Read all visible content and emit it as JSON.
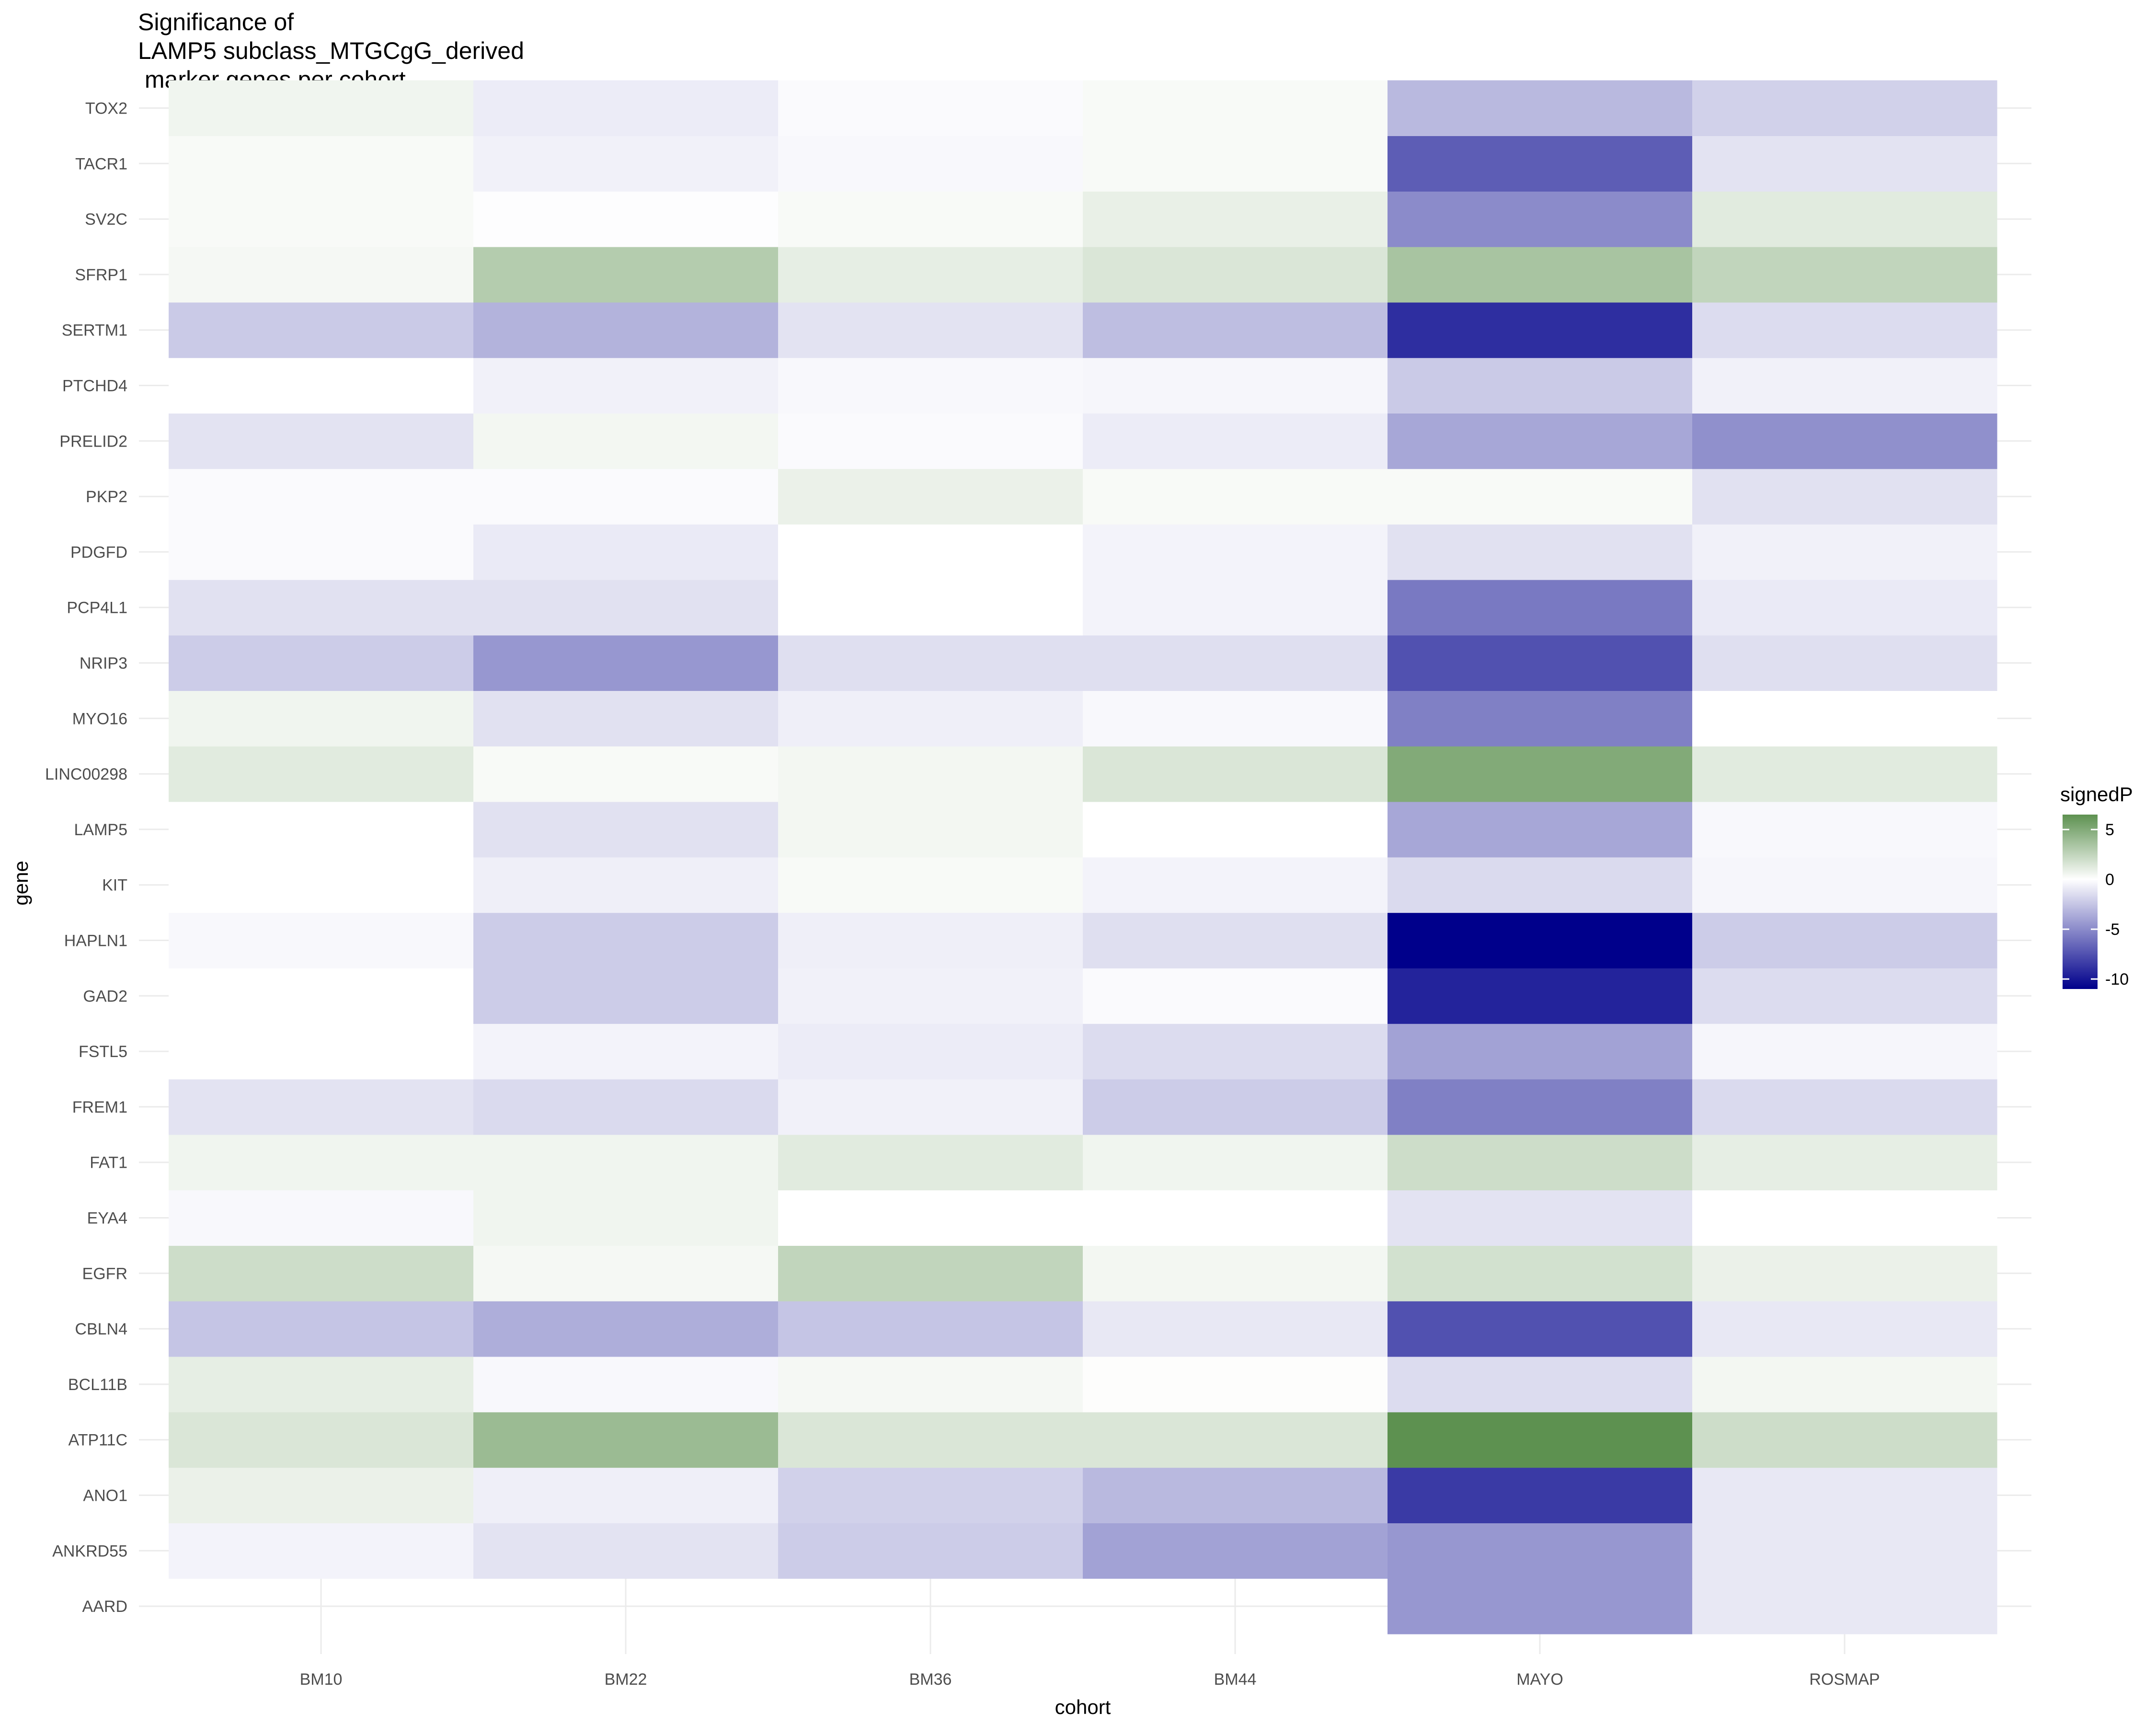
{
  "chart_data": {
    "type": "heatmap",
    "title_lines": [
      "Significance of",
      "LAMP5 subclass_MTGCgG_derived",
      " marker genes per cohort"
    ],
    "xlabel": "cohort",
    "ylabel": "gene",
    "x_categories": [
      "BM10",
      "BM22",
      "BM36",
      "BM44",
      "MAYO",
      "ROSMAP"
    ],
    "y_categories": [
      "AARD",
      "ANKRD55",
      "ANO1",
      "ATP11C",
      "BCL11B",
      "CBLN4",
      "EGFR",
      "EYA4",
      "FAT1",
      "FREM1",
      "FSTL5",
      "GAD2",
      "HAPLN1",
      "KIT",
      "LAMP5",
      "LINC00298",
      "MYO16",
      "NRIP3",
      "PCP4L1",
      "PDGFD",
      "PKP2",
      "PRELID2",
      "PTCHD4",
      "SERTM1",
      "SFRP1",
      "SV2C",
      "TACR1",
      "TOX2"
    ],
    "values": [
      [
        null,
        null,
        null,
        null,
        -4.5,
        -1.0
      ],
      [
        -0.5,
        -1.2,
        -2.2,
        -4.0,
        -4.5,
        -1.0
      ],
      [
        0.8,
        -0.7,
        -2.0,
        -3.0,
        -8.5,
        -1.0
      ],
      [
        1.5,
        4.0,
        1.5,
        1.5,
        6.5,
        2.0
      ],
      [
        1.0,
        -0.3,
        0.4,
        0.1,
        -1.5,
        0.5
      ],
      [
        -2.5,
        -3.5,
        -2.5,
        -1.0,
        -7.5,
        -1.0
      ],
      [
        2.0,
        0.4,
        2.5,
        0.5,
        1.8,
        0.8
      ],
      [
        -0.3,
        0.6,
        0.0,
        0.0,
        -1.2,
        0.0
      ],
      [
        0.6,
        0.6,
        1.2,
        0.6,
        2.0,
        1.0
      ],
      [
        -1.2,
        -1.6,
        -0.6,
        -2.2,
        -5.5,
        -1.6
      ],
      [
        0.0,
        -0.5,
        -0.8,
        -1.5,
        -4.0,
        -0.4
      ],
      [
        0.0,
        -2.2,
        -0.6,
        -0.2,
        -9.5,
        -1.5
      ],
      [
        -0.3,
        -2.2,
        -0.7,
        -1.4,
        -11.0,
        -2.2
      ],
      [
        0.0,
        -0.7,
        0.3,
        -0.5,
        -1.6,
        -0.4
      ],
      [
        0.0,
        -1.3,
        0.5,
        0.0,
        -3.8,
        -0.3
      ],
      [
        1.2,
        0.3,
        0.5,
        1.5,
        5.0,
        1.2
      ],
      [
        0.6,
        -1.3,
        -0.7,
        -0.3,
        -5.5,
        0.0
      ],
      [
        -2.2,
        -4.5,
        -1.4,
        -1.4,
        -7.5,
        -1.4
      ],
      [
        -1.3,
        -1.3,
        0.0,
        -0.5,
        -5.8,
        -0.9
      ],
      [
        -0.2,
        -0.9,
        0.0,
        -0.5,
        -1.3,
        -0.6
      ],
      [
        -0.2,
        -0.2,
        0.8,
        0.3,
        0.3,
        -1.3
      ],
      [
        -1.2,
        0.5,
        -0.2,
        -0.8,
        -3.8,
        -4.8
      ],
      [
        0.0,
        -0.6,
        -0.3,
        -0.4,
        -2.3,
        -0.6
      ],
      [
        -2.3,
        -3.3,
        -1.2,
        -2.8,
        -9.0,
        -1.5
      ],
      [
        0.4,
        3.0,
        1.0,
        1.5,
        3.5,
        2.5
      ],
      [
        0.3,
        -0.1,
        0.3,
        0.9,
        -5.0,
        1.2
      ],
      [
        0.3,
        -0.6,
        -0.3,
        0.3,
        -7.0,
        -1.2
      ],
      [
        0.6,
        -0.8,
        -0.2,
        0.3,
        -3.0,
        -2.0
      ]
    ],
    "colorbar": {
      "title": "signedP",
      "min": -11,
      "max": 6.5,
      "ticks": [
        5,
        0,
        -5,
        -10
      ],
      "tick_labels": [
        "5",
        "0",
        "-5",
        "-10"
      ],
      "low_color": "#00008B",
      "mid_color": "#ffffff",
      "high_color": "#5D9150"
    },
    "grid": true
  }
}
